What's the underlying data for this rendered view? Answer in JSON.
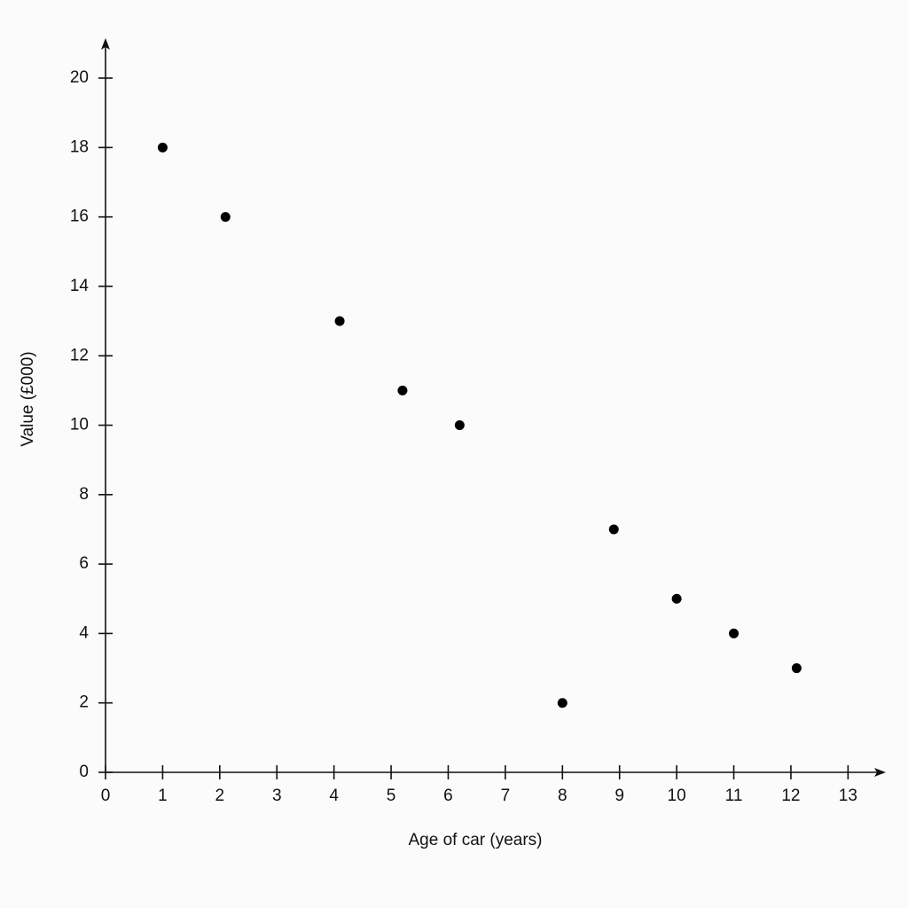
{
  "chart_data": {
    "type": "scatter",
    "x_label": "Age of car (years)",
    "y_label": "Value (£000)",
    "x": [
      1,
      2.1,
      4.1,
      5.2,
      6.2,
      8,
      8.9,
      10,
      11,
      12.1
    ],
    "values": [
      18,
      16,
      13,
      11,
      10,
      2,
      7,
      5,
      4,
      3
    ],
    "color": "#000000",
    "xlim": [
      0,
      13.6
    ],
    "ylim": [
      0,
      21.1
    ],
    "xticks": [
      0,
      1,
      2,
      3,
      4,
      5,
      6,
      7,
      8,
      9,
      10,
      11,
      12,
      13
    ],
    "yticks": [
      0,
      2,
      4,
      6,
      8,
      10,
      12,
      14,
      16,
      18,
      20
    ],
    "grid": false
  }
}
